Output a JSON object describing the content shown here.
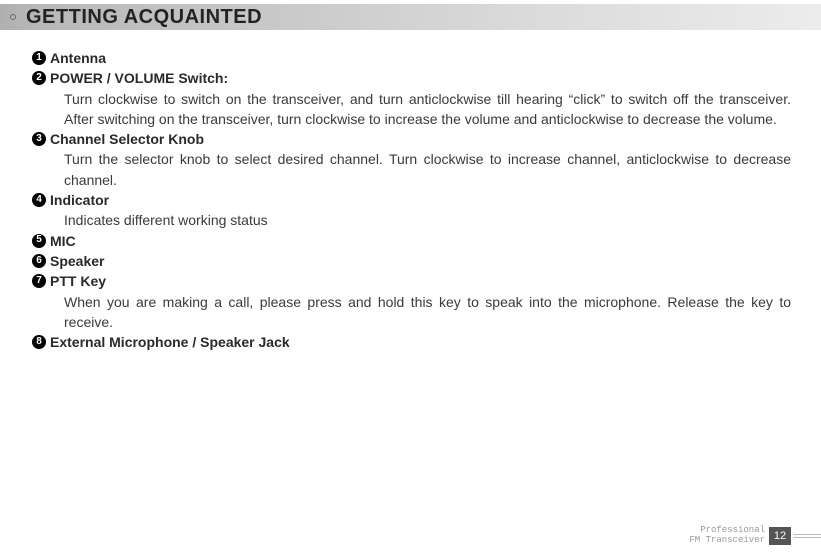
{
  "header": {
    "title": "GETTING ACQUAINTED"
  },
  "items": [
    {
      "num": "1",
      "title": "Antenna",
      "desc": ""
    },
    {
      "num": "2",
      "title": "POWER / VOLUME Switch:",
      "desc": "Turn clockwise to switch on the transceiver, and turn anticlockwise till hearing “click” to switch off the transceiver. After switching on the transceiver, turn clockwise to increase the volume and anticlockwise to decrease the volume."
    },
    {
      "num": "3",
      "title": "Channel Selector Knob",
      "desc": "Turn the selector knob to select desired channel. Turn clockwise to increase channel, anticlockwise to decrease channel."
    },
    {
      "num": "4",
      "title": "Indicator",
      "desc": "Indicates different working status"
    },
    {
      "num": "5",
      "title": "MIC",
      "desc": ""
    },
    {
      "num": "6",
      "title": "Speaker",
      "desc": ""
    },
    {
      "num": "7",
      "title": "PTT Key",
      "desc": "When you are making a call, please press and hold this key to speak into the microphone. Release the key to receive."
    },
    {
      "num": "8",
      "title": "External Microphone / Speaker Jack",
      "desc": ""
    }
  ],
  "footer": {
    "line1": "Professional",
    "line2": "FM Transceiver",
    "page": "12"
  }
}
